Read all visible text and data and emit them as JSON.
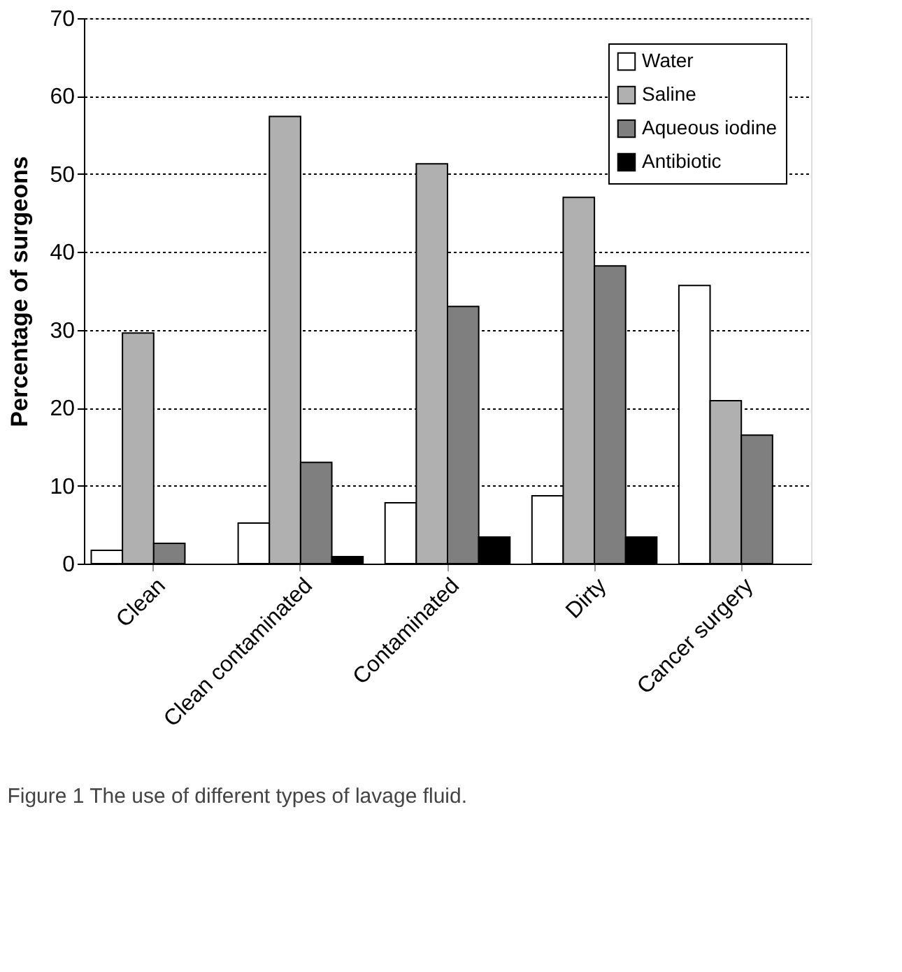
{
  "chart_data": {
    "type": "bar",
    "ylabel": "Percentage of surgeons",
    "categories": [
      "Clean",
      "Clean contaminated",
      "Contaminated",
      "Dirty",
      "Cancer surgery"
    ],
    "series": [
      {
        "name": "Water",
        "color": "#ffffff",
        "values": [
          1.7,
          5.2,
          7.8,
          8.7,
          35.7
        ]
      },
      {
        "name": "Saline",
        "color": "#b0b0b0",
        "values": [
          29.6,
          57.4,
          51.3,
          47.0,
          20.9
        ]
      },
      {
        "name": "Aqueous iodine",
        "color": "#7f7f7f",
        "values": [
          2.6,
          13.0,
          33.0,
          38.2,
          16.5
        ]
      },
      {
        "name": "Antibiotic",
        "color": "#000000",
        "values": [
          null,
          0.9,
          3.4,
          3.4,
          null
        ]
      }
    ],
    "ylim": [
      0,
      70
    ],
    "yticks": [
      0,
      10,
      20,
      30,
      40,
      50,
      60,
      70
    ],
    "grid": "y",
    "legend": "top right",
    "annotations": [
      "Figure 1  The use of different types of lavage fluid."
    ]
  }
}
